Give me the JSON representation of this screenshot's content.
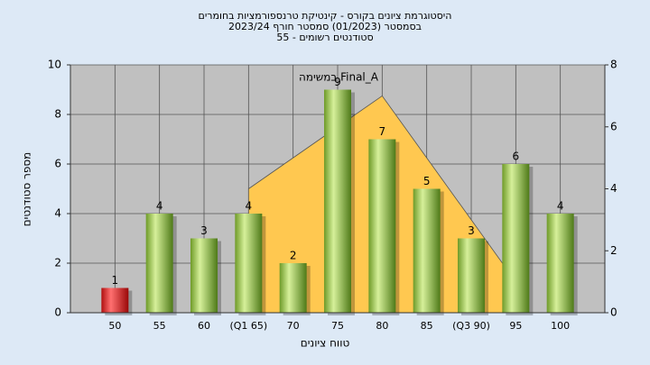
{
  "chart_data": {
    "type": "bar",
    "title": "היסטוגרמת ציונים בקורס - קינטיקת טרנספורמציות בחומרים",
    "subtitle": "בסמסטר  (01/2023)  סמסטר חורף 2023/24",
    "subtitle2": "סטודנטים רשומים - 55",
    "annotation": "במשימה Final_A",
    "x_label": "טווח ציונים",
    "y_label": "מספר סטודנטים",
    "categories": [
      "50",
      "55",
      "60",
      "(Q1 65)",
      "70",
      "75",
      "80",
      "85",
      "(Q3 90)",
      "95",
      "100"
    ],
    "values": [
      1,
      4,
      3,
      4,
      2,
      9,
      7,
      5,
      3,
      6,
      4
    ],
    "colors": [
      "red",
      "green",
      "green",
      "green",
      "green",
      "green",
      "green",
      "green",
      "green",
      "green",
      "green"
    ],
    "area": {
      "color": "#ffc850",
      "axis": "y2",
      "values": [
        null,
        null,
        null,
        4,
        5,
        6,
        7,
        5,
        3,
        1,
        null
      ]
    },
    "ylim": [
      0,
      10
    ],
    "yticks": [
      0,
      2,
      4,
      6,
      8,
      10
    ],
    "y2lim": [
      0,
      8
    ],
    "y2ticks": [
      0,
      2,
      4,
      6,
      8
    ],
    "grid": true
  }
}
